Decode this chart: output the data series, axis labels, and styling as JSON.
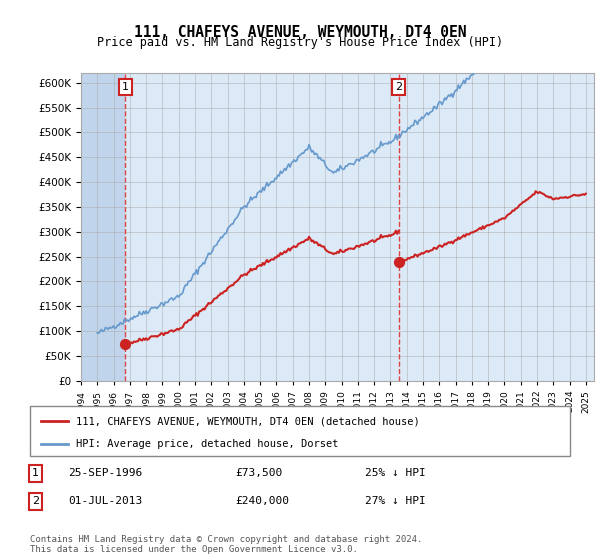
{
  "title": "111, CHAFEYS AVENUE, WEYMOUTH, DT4 0EN",
  "subtitle": "Price paid vs. HM Land Registry's House Price Index (HPI)",
  "hpi_label": "HPI: Average price, detached house, Dorset",
  "property_label": "111, CHAFEYS AVENUE, WEYMOUTH, DT4 0EN (detached house)",
  "footnote": "Contains HM Land Registry data © Crown copyright and database right 2024.\nThis data is licensed under the Open Government Licence v3.0.",
  "sale1": {
    "date": "25-SEP-1996",
    "price": 73500,
    "hpi_rel": "25% ↓ HPI",
    "year": 1996.73
  },
  "sale2": {
    "date": "01-JUL-2013",
    "price": 240000,
    "hpi_rel": "27% ↓ HPI",
    "year": 2013.5
  },
  "ylim": [
    0,
    620000
  ],
  "xlim_start": 1994,
  "xlim_end": 2025.5,
  "bg_color": "#dce9f7",
  "hatch_color": "#c0d4ec",
  "grid_color": "#aaaaaa",
  "hpi_line_color": "#6699cc",
  "property_line_color": "#cc2222",
  "marker_color": "#cc2222",
  "vline_color": "#dd4444",
  "box_edge_color": "#cc2222"
}
